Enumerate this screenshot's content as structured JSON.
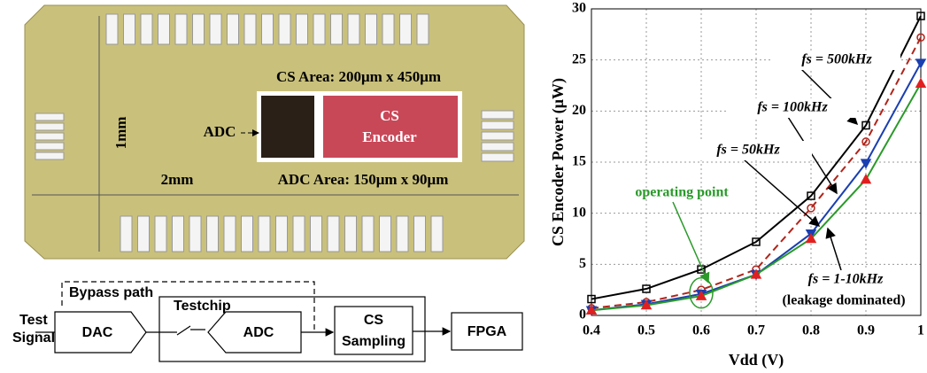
{
  "chip": {
    "cs_area": "CS Area: 200μm x 450μm",
    "adc": "ADC",
    "cs": "CS",
    "encoder": "Encoder",
    "height": "1mm",
    "width": "2mm",
    "adc_area": "ADC Area: 150μm x 90μm"
  },
  "diagram": {
    "bypass": "Bypass path",
    "test": "Test",
    "signal": "Signal",
    "dac": "DAC",
    "testchip": "Testchip",
    "adc": "ADC",
    "cs": "CS",
    "sampling": "Sampling",
    "fpga": "FPGA"
  },
  "chart_data": {
    "type": "line",
    "x_label": "Vdd (V)",
    "y_label": "CS Encoder Power (μW)",
    "x": [
      0.4,
      0.5,
      0.6,
      0.7,
      0.8,
      0.9,
      1
    ],
    "series": [
      {
        "name": "fs = 500kHz",
        "color": "#000000",
        "marker": "square",
        "dash": false,
        "values": [
          1.6,
          2.6,
          4.5,
          7.2,
          11.7,
          18.6,
          29.3
        ]
      },
      {
        "name": "fs = 100kHz",
        "color": "#b0241a",
        "marker": "circle",
        "dash": true,
        "values": [
          0.7,
          1.3,
          2.5,
          4.5,
          10.5,
          17.0,
          27.2
        ]
      },
      {
        "name": "fs = 50kHz",
        "color": "#1a3fb0",
        "marker": "tri-down",
        "dash": false,
        "values": [
          0.5,
          1.1,
          2.1,
          4.0,
          8.0,
          14.9,
          24.7
        ]
      },
      {
        "name": "fs = 1-10kHz",
        "color": "#2a9a2a",
        "marker_color": "#e02020",
        "marker": "tri-up",
        "dash": false,
        "values": [
          0.5,
          1.0,
          1.9,
          4.0,
          7.5,
          13.3,
          22.7
        ]
      }
    ],
    "annotations": [
      "(leakage dominated)",
      "operating point"
    ],
    "xlim": [
      0.4,
      1
    ],
    "xticks": [
      0.4,
      0.5,
      0.6,
      0.7,
      0.8,
      0.9,
      1
    ],
    "ylim": [
      0,
      30
    ],
    "yticks": [
      0,
      5,
      10,
      15,
      20,
      25,
      30
    ],
    "grid": true
  }
}
